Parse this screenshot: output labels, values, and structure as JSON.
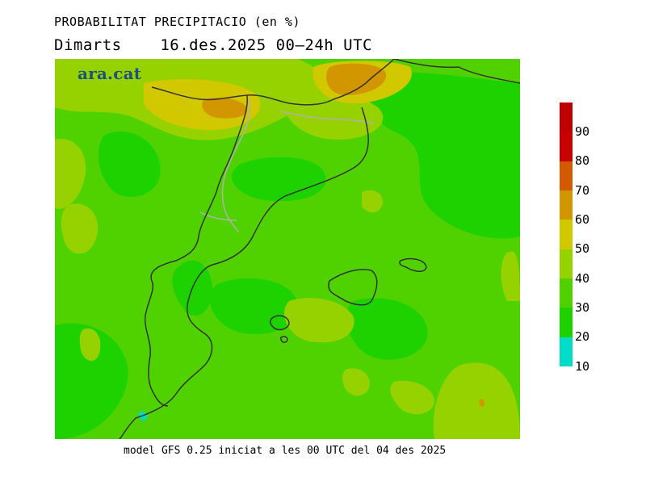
{
  "header": {
    "title": "PROBABILITAT PRECIPITACIO (en %)",
    "subtitle": "Dimarts    16.des.2025 00—24h UTC"
  },
  "map": {
    "brand": "ara.cat"
  },
  "legend": {
    "levels": [
      "10",
      "20",
      "30",
      "40",
      "50",
      "60",
      "70",
      "80",
      "90"
    ],
    "colors": [
      "#00dcc8",
      "#00d21e",
      "#1ed200",
      "#50d200",
      "#96d200",
      "#d2c800",
      "#d29600",
      "#d25a00",
      "#c80000",
      "#be0000"
    ]
  },
  "footer": {
    "caption": "model GFS 0.25 iniciat a les 00 UTC del 04 des 2025"
  }
}
